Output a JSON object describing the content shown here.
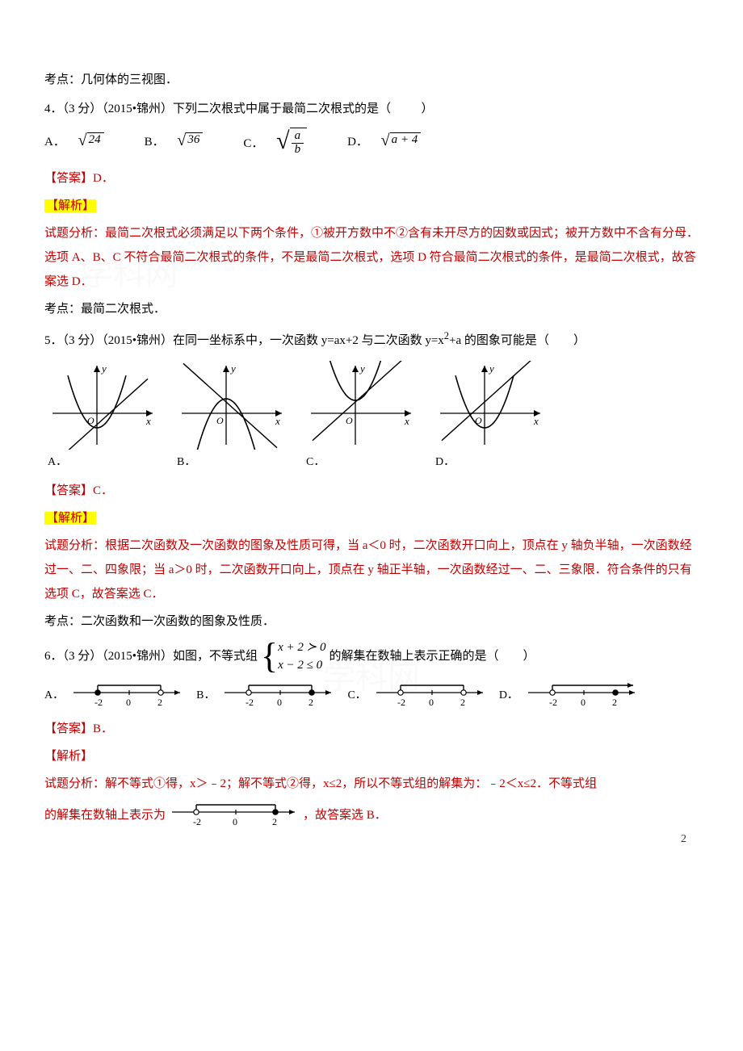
{
  "q3": {
    "topic": "考点：几何体的三视图．"
  },
  "q4": {
    "stem_prefix": "4．（3 分）（2015•锦州）下列二次根式中属于最简二次根式的是（",
    "stem_suffix": "）",
    "options": {
      "A": {
        "label": "A．",
        "radicand": "24"
      },
      "B": {
        "label": "B．",
        "radicand": "36"
      },
      "C": {
        "label": "C．",
        "num": "a",
        "den": "b"
      },
      "D": {
        "label": "D．",
        "radicand": "a + 4"
      }
    },
    "answer_label": "【答案】",
    "answer_val": "D．",
    "analysis_label": "【解析】",
    "analysis_text": "试题分析：最简二次根式必须满足以下两个条件，①被开方数中不②含有未开尽方的因数或因式；被开方数中不含有分母．选项 A、B、C 不符合最简二次根式的条件，不是最简二次根式，选项 D 符合最简二次根式的条件，是最简二次根式，故答案选 D．",
    "topic": "考点：最简二次根式．"
  },
  "q5": {
    "stem_prefix": "5．（3 分）（2015•锦州）在同一坐标系中，一次函数 y=ax+2 与二次函数 y=x",
    "stem_sup": "2",
    "stem_mid": "+a 的图象可能是（",
    "stem_suffix": "）",
    "graphs": {
      "axis_color": "#000000",
      "line_color": "#000000",
      "parab_color": "#000000",
      "items": [
        {
          "label": "A．",
          "parab_vy": 16,
          "line_dir": "up",
          "line_yint": -12
        },
        {
          "label": "B．",
          "parab_vy": -16,
          "line_dir": "down",
          "line_yint": 12,
          "flip": true
        },
        {
          "label": "C．",
          "parab_vy": 16,
          "line_dir": "up",
          "line_yint": 12
        },
        {
          "label": "D．",
          "parab_vy": -16,
          "line_dir": "up",
          "line_yint": 12
        }
      ]
    },
    "answer_label": "【答案】",
    "answer_val": "C．",
    "analysis_label": "【解析】",
    "analysis_text": "试题分析：根据二次函数及一次函数的图象及性质可得，当 a＜0 时，二次函数开口向上，顶点在 y 轴负半轴，一次函数经过一、二、四象限；当 a＞0 时，二次函数开口向上，顶点在 y 轴正半轴，一次函数经过一、二、三象限．符合条件的只有选项 C，故答案选 C．",
    "topic": "考点：二次函数和一次函数的图象及性质．"
  },
  "q6": {
    "stem_prefix": "6．（3 分）（2015•锦州）如图，不等式组",
    "ineq_top": "x + 2 ≻ 0",
    "ineq_bot": "x − 2 ≤ 0",
    "stem_suffix": "的解集在数轴上表示正确的是（　　）",
    "numlines": {
      "ticks": [
        "-2",
        "0",
        "2"
      ],
      "items": [
        {
          "label": "A．",
          "left_open": false,
          "right_open": true,
          "left_at": -2,
          "right_at": 2,
          "range_from": -2,
          "range_to": 2
        },
        {
          "label": "B．",
          "left_open": true,
          "right_open": false,
          "left_at": -2,
          "right_at": 2,
          "range_from": -2,
          "range_to": 2
        },
        {
          "label": "C．",
          "left_open": true,
          "right_open": true,
          "left_at": -2,
          "right_at": 2,
          "range_from": -2,
          "range_to": 2
        },
        {
          "label": "D．",
          "left_open": true,
          "right_open": false,
          "left_at": -2,
          "right_at": 2,
          "range_from": -2,
          "range_to": 2,
          "right_arrow": true
        }
      ]
    },
    "answer_label": "【答案】",
    "answer_val": "B．",
    "analysis_label": "【解析】",
    "analysis_p1_a": "试题分析：解不等式①得，x＞﹣2；解不等式②得，x≤2，所以不等式组的解集为：﹣2＜x≤2．不等式组",
    "analysis_p2_a": "的解集在数轴上表示为",
    "analysis_p2_b": "，故答案选 B．",
    "answer_numline": {
      "left_open": true,
      "right_open": false,
      "ticks": [
        "-2",
        "0",
        "2"
      ]
    }
  },
  "colors": {
    "red": "#c00000",
    "highlight": "#ffff00",
    "text": "#000000"
  },
  "page_number": "2"
}
